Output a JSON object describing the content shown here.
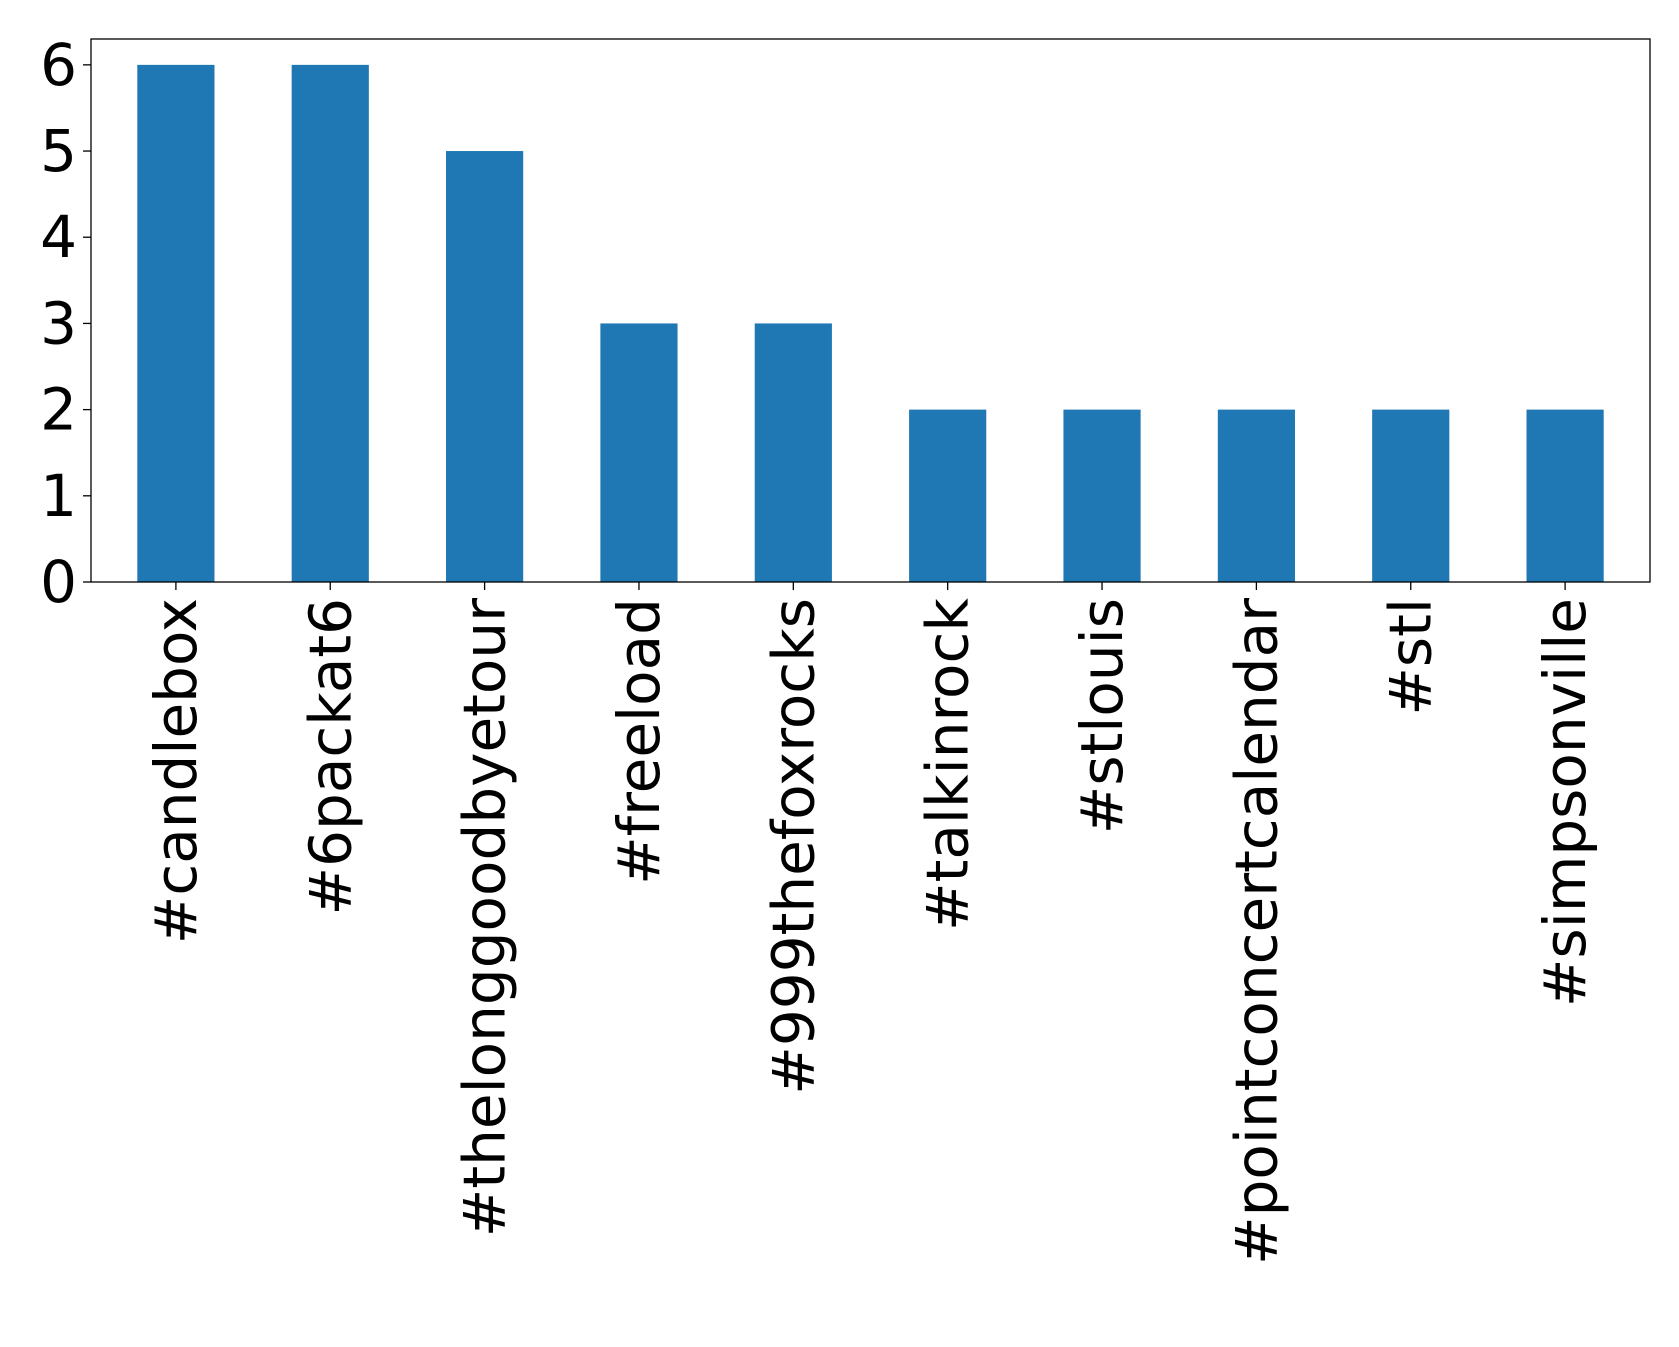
{
  "chart_data": {
    "type": "bar",
    "title": "",
    "xlabel": "",
    "ylabel": "",
    "categories": [
      "#candlebox",
      "#6packat6",
      "#thelonggoodbyetour",
      "#freeload",
      "#999thefoxrocks",
      "#talkinrock",
      "#stlouis",
      "#pointconcertcalendar",
      "#stl",
      "#simpsonville"
    ],
    "values": [
      6,
      6,
      5,
      3,
      3,
      2,
      2,
      2,
      2,
      2
    ],
    "ylim": [
      0,
      6.3
    ],
    "yticks": [
      "0",
      "1",
      "2",
      "3",
      "4",
      "5",
      "6"
    ],
    "grid": false,
    "legend": "none",
    "bar_color": "#1f77b4"
  }
}
